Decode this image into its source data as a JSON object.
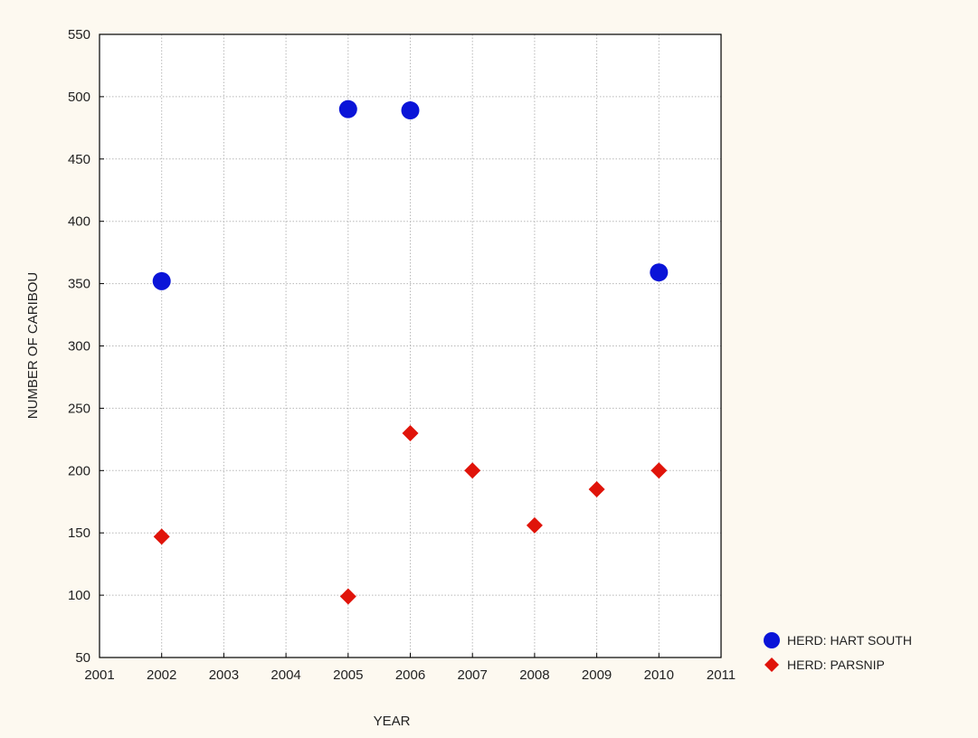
{
  "chart_data": {
    "type": "scatter",
    "title": "",
    "xlabel": "YEAR",
    "ylabel": "NUMBER OF CARIBOU",
    "xlim": [
      2001,
      2011
    ],
    "ylim": [
      50,
      550
    ],
    "xticks": [
      2001,
      2002,
      2003,
      2004,
      2005,
      2006,
      2007,
      2008,
      2009,
      2010,
      2011
    ],
    "yticks": [
      50,
      100,
      150,
      200,
      250,
      300,
      350,
      400,
      450,
      500,
      550
    ],
    "grid": true,
    "legend_position": "bottom-right",
    "series": [
      {
        "name": "HERD: HART SOUTH",
        "marker": "circle",
        "color": "#0a14d8",
        "points": [
          {
            "x": 2002,
            "y": 352
          },
          {
            "x": 2005,
            "y": 490
          },
          {
            "x": 2006,
            "y": 489
          },
          {
            "x": 2010,
            "y": 359
          }
        ]
      },
      {
        "name": "HERD: PARSNIP",
        "marker": "diamond",
        "color": "#e0140a",
        "points": [
          {
            "x": 2002,
            "y": 147
          },
          {
            "x": 2005,
            "y": 99
          },
          {
            "x": 2006,
            "y": 230
          },
          {
            "x": 2007,
            "y": 200
          },
          {
            "x": 2008,
            "y": 156
          },
          {
            "x": 2009,
            "y": 185
          },
          {
            "x": 2010,
            "y": 200
          }
        ]
      }
    ]
  }
}
